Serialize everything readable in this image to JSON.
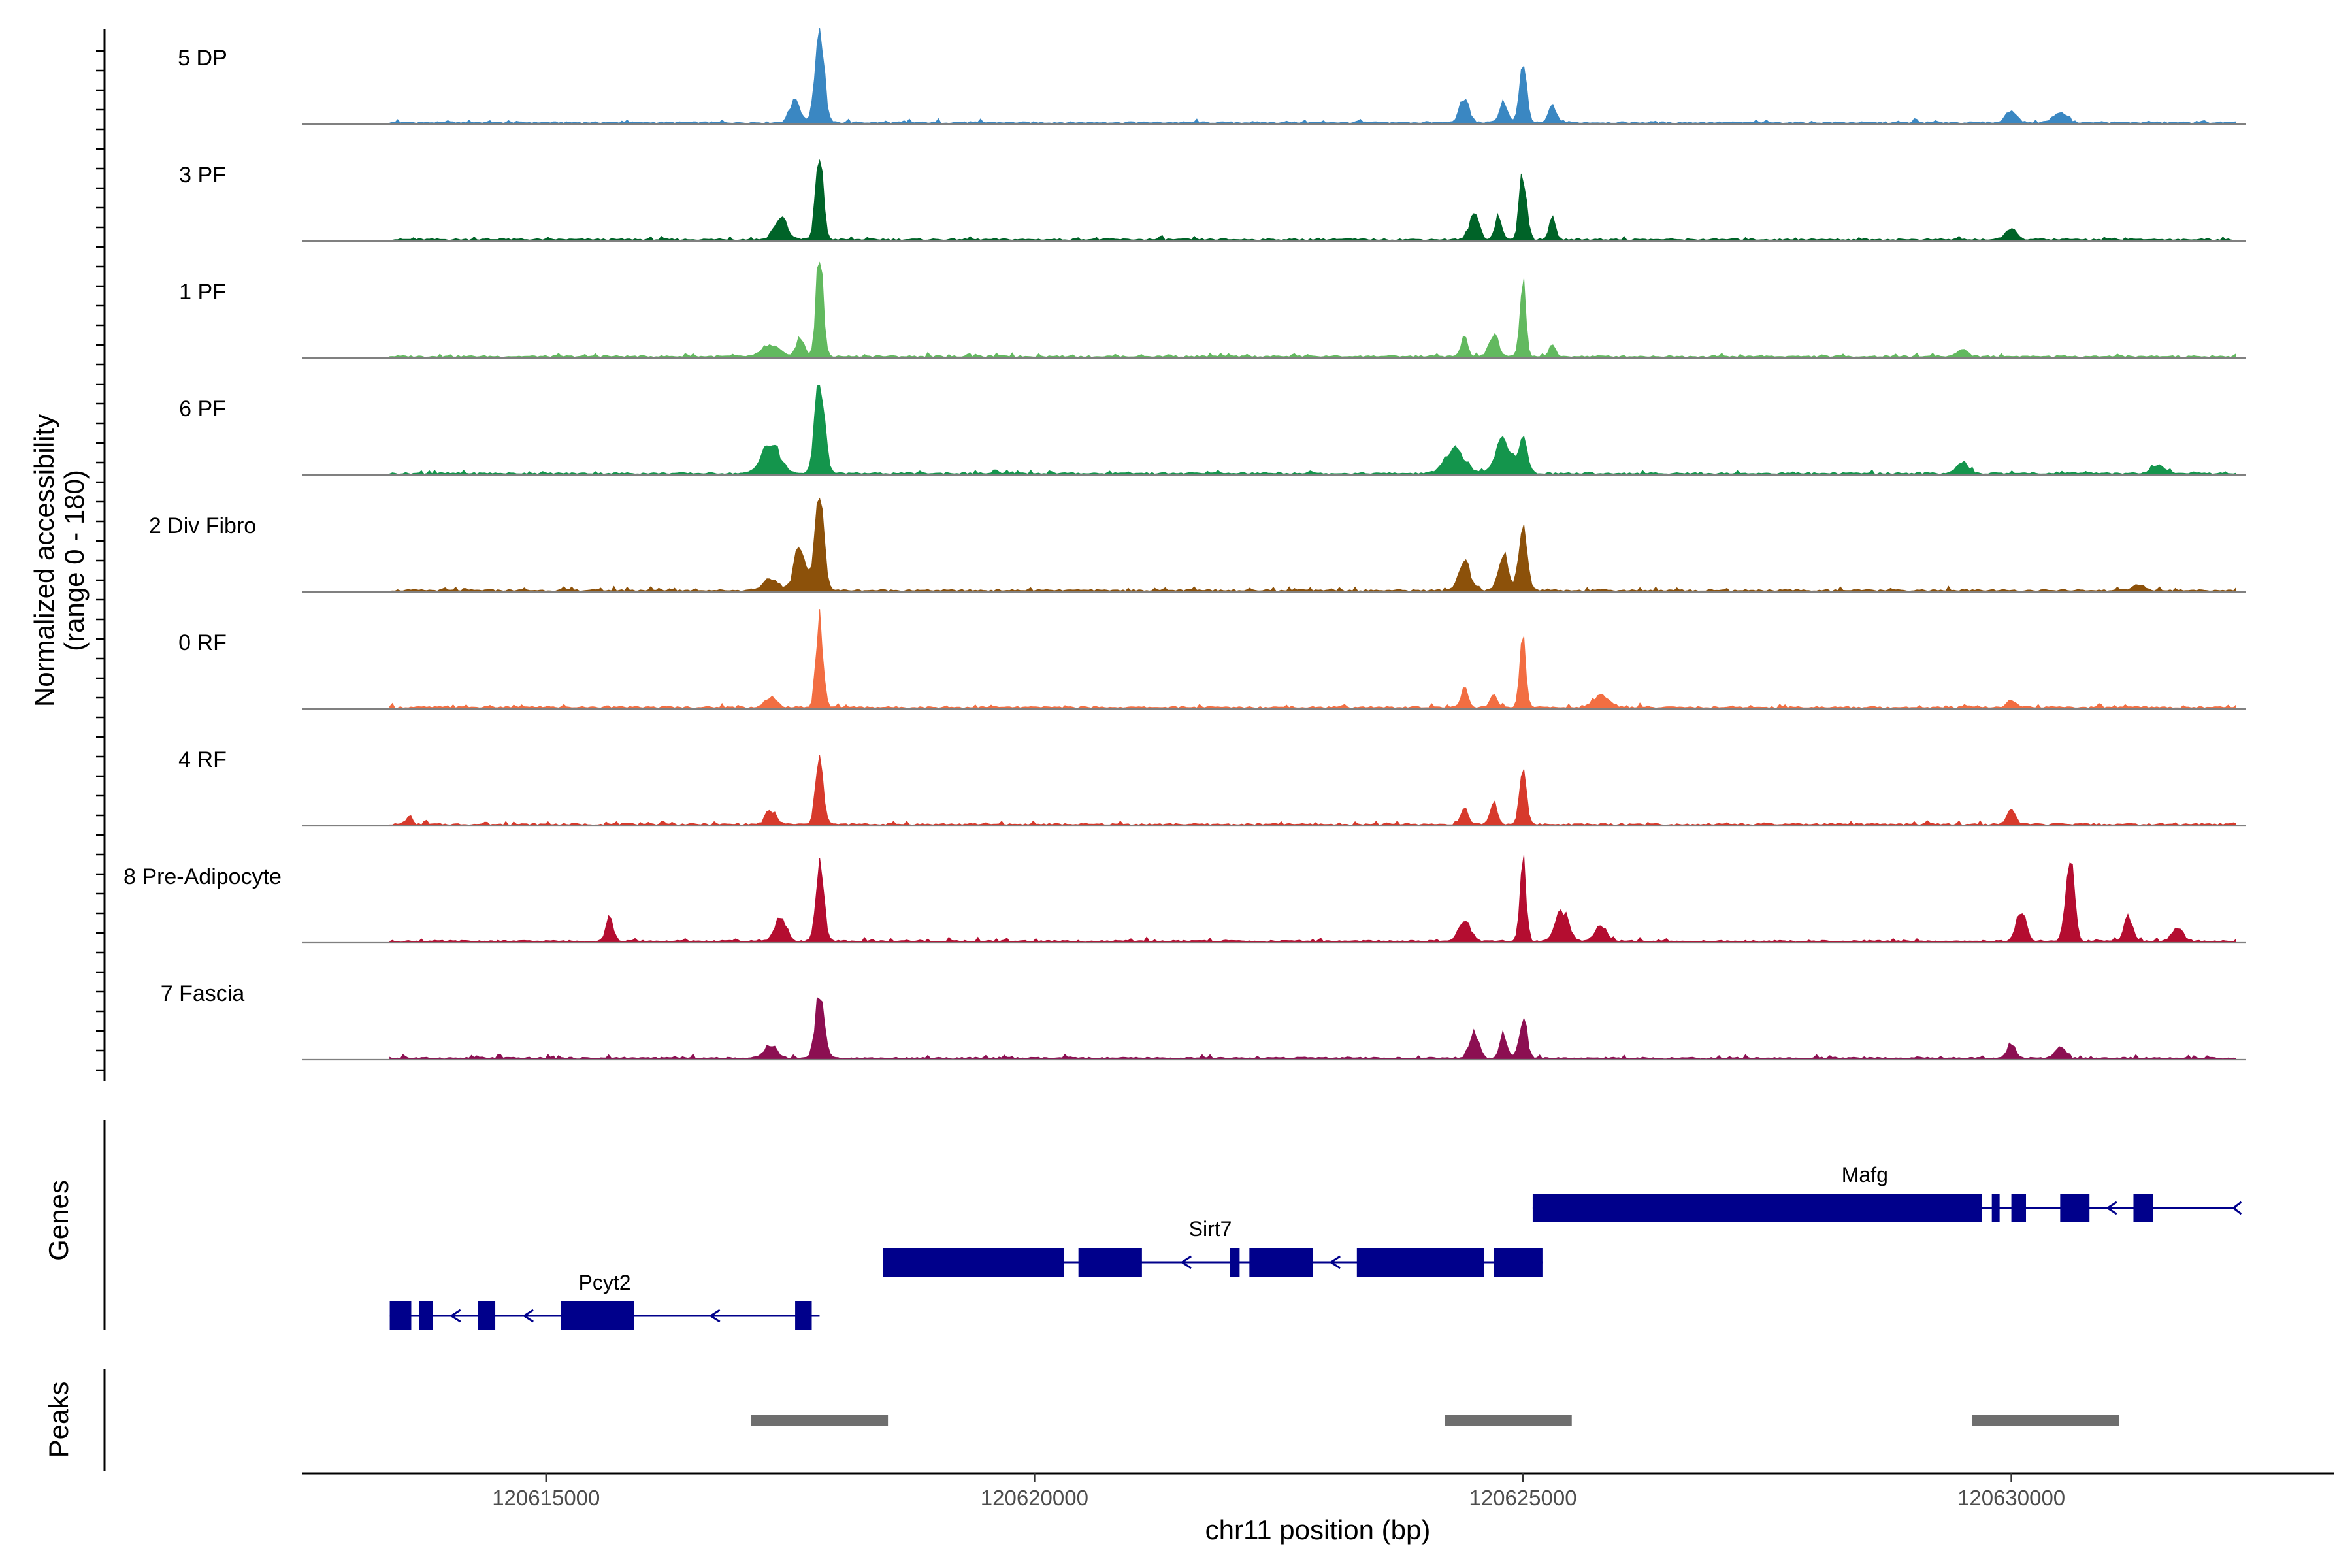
{
  "chart_data": {
    "type": "area",
    "chromosome": "chr11",
    "xlabel": "chr11 position (bp)",
    "ylabel": "Normalized accessibility",
    "ylabel_range": "(range 0 - 180)",
    "ylim": [
      0,
      180
    ],
    "xlim": [
      120612500,
      120633300
    ],
    "xticks": [
      120615000,
      120620000,
      120625000,
      120630000
    ],
    "tracks": [
      {
        "name": "5 DP",
        "color": "#3a87c2",
        "peaks": [
          [
            120617550,
            38,
            170
          ],
          [
            120617800,
            165,
            140
          ],
          [
            120624400,
            45,
            150
          ],
          [
            120624800,
            38,
            130
          ],
          [
            120625000,
            115,
            110
          ],
          [
            120625300,
            30,
            110
          ],
          [
            120630000,
            22,
            170
          ],
          [
            120630500,
            18,
            220
          ]
        ]
      },
      {
        "name": "3 PF",
        "color": "#006328",
        "peaks": [
          [
            120617400,
            40,
            200
          ],
          [
            120617800,
            150,
            120
          ],
          [
            120624500,
            50,
            150
          ],
          [
            120624750,
            40,
            110
          ],
          [
            120625000,
            120,
            110
          ],
          [
            120625300,
            45,
            90
          ],
          [
            120630000,
            20,
            170
          ]
        ]
      },
      {
        "name": "1 PF",
        "color": "#62b95f",
        "peaks": [
          [
            120617300,
            22,
            250
          ],
          [
            120617600,
            35,
            130
          ],
          [
            120617800,
            178,
            110
          ],
          [
            120624400,
            35,
            100
          ],
          [
            120624700,
            42,
            140
          ],
          [
            120625000,
            138,
            90
          ],
          [
            120625300,
            22,
            90
          ],
          [
            120629500,
            12,
            170
          ]
        ]
      },
      {
        "name": "6 PF",
        "color": "#14954c",
        "peaks": [
          [
            120617300,
            55,
            280
          ],
          [
            120617800,
            165,
            150
          ],
          [
            120624300,
            45,
            300
          ],
          [
            120624800,
            60,
            250
          ],
          [
            120625000,
            55,
            150
          ],
          [
            120629500,
            20,
            180
          ],
          [
            120631500,
            15,
            220
          ]
        ]
      },
      {
        "name": "2 Div Fibro",
        "color": "#8c510a",
        "peaks": [
          [
            120617300,
            22,
            220
          ],
          [
            120617600,
            78,
            180
          ],
          [
            120617800,
            165,
            140
          ],
          [
            120624400,
            55,
            180
          ],
          [
            120624800,
            65,
            150
          ],
          [
            120625000,
            118,
            130
          ],
          [
            120631300,
            12,
            170
          ]
        ]
      },
      {
        "name": "0 RF",
        "color": "#f26e42",
        "peaks": [
          [
            120617300,
            18,
            180
          ],
          [
            120617800,
            165,
            110
          ],
          [
            120624400,
            32,
            110
          ],
          [
            120624700,
            25,
            110
          ],
          [
            120625000,
            118,
            100
          ],
          [
            120625800,
            20,
            250
          ],
          [
            120630000,
            12,
            150
          ]
        ]
      },
      {
        "name": "4 RF",
        "color": "#d73a2c",
        "peaks": [
          [
            120613600,
            15,
            80
          ],
          [
            120617300,
            25,
            160
          ],
          [
            120617800,
            118,
            120
          ],
          [
            120624400,
            32,
            110
          ],
          [
            120624700,
            40,
            110
          ],
          [
            120625000,
            95,
            110
          ],
          [
            120630000,
            30,
            130
          ]
        ]
      },
      {
        "name": "8 Pre-Adipocyte",
        "color": "#b40d30",
        "peaks": [
          [
            120615650,
            40,
            120
          ],
          [
            120617400,
            45,
            180
          ],
          [
            120617800,
            150,
            120
          ],
          [
            120624400,
            42,
            180
          ],
          [
            120625000,
            140,
            100
          ],
          [
            120625400,
            55,
            200
          ],
          [
            120625800,
            25,
            200
          ],
          [
            120630100,
            55,
            150
          ],
          [
            120630600,
            160,
            130
          ],
          [
            120631200,
            45,
            130
          ],
          [
            120631700,
            25,
            180
          ]
        ]
      },
      {
        "name": "7 Fascia",
        "color": "#8c0f52",
        "peaks": [
          [
            120617300,
            25,
            200
          ],
          [
            120617800,
            110,
            140
          ],
          [
            120624500,
            45,
            150
          ],
          [
            120624800,
            40,
            110
          ],
          [
            120625000,
            70,
            120
          ],
          [
            120630000,
            25,
            130
          ],
          [
            120630500,
            20,
            160
          ]
        ]
      }
    ],
    "genes_label": "Genes",
    "genes": [
      {
        "name": "Pcyt2",
        "strand": "-",
        "row": 2,
        "label_x": 120615600,
        "start": 120613400,
        "end": 120617800,
        "exons": [
          [
            120613400,
            120613620
          ],
          [
            120613700,
            120613840
          ],
          [
            120614300,
            120614480
          ],
          [
            120615150,
            120615900
          ],
          [
            120617550,
            120617720
          ]
        ]
      },
      {
        "name": "Sirt7",
        "strand": "-",
        "row": 1,
        "label_x": 120621800,
        "start": 120618450,
        "end": 120625200,
        "exons": [
          [
            120618450,
            120620300
          ],
          [
            120620450,
            120621100
          ],
          [
            120622000,
            120622100
          ],
          [
            120622200,
            120622850
          ],
          [
            120623300,
            120624600
          ],
          [
            120624700,
            120625200
          ]
        ]
      },
      {
        "name": "Mafg",
        "strand": "-",
        "row": 0,
        "label_x": 120628500,
        "start": 120625100,
        "end": 120632300,
        "exons": [
          [
            120625100,
            120629700
          ],
          [
            120629800,
            120629880
          ],
          [
            120630000,
            120630150
          ],
          [
            120630500,
            120630800
          ],
          [
            120631250,
            120631450
          ]
        ]
      }
    ],
    "peaks_label": "Peaks",
    "peak_regions": [
      [
        120617100,
        120618500
      ],
      [
        120624200,
        120625500
      ],
      [
        120629600,
        120631100
      ]
    ]
  }
}
